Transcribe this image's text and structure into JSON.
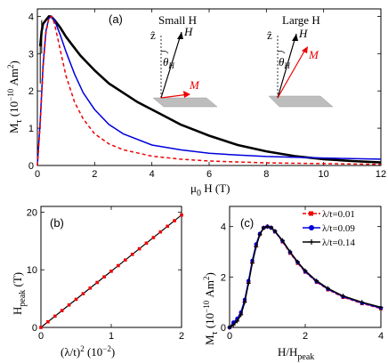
{
  "chart_data": [
    {
      "panel": "(a)",
      "type": "line",
      "xlabel_main": "μ",
      "xlabel_sub": "0",
      "xlabel_rest": " H (T)",
      "ylabel_main": "M",
      "ylabel_sub": "τ",
      "ylabel_rest": " (10",
      "ylabel_exp": "−10",
      "ylabel_unit": " Am",
      "ylabel_unit_exp": "2",
      "ylabel_close": ")",
      "xlim": [
        0,
        12
      ],
      "ylim": [
        0,
        4.2
      ],
      "xticks": [
        0,
        2,
        4,
        6,
        8,
        10,
        12
      ],
      "yticks": [
        0,
        1,
        2,
        3,
        4
      ],
      "series": [
        {
          "style": "black-data",
          "color": "#000000",
          "x": [
            0.1,
            0.15,
            0.2,
            0.25,
            0.3,
            0.35,
            0.4,
            0.45,
            0.5,
            0.6,
            0.7,
            0.8,
            1,
            1.2,
            1.5,
            2,
            2.5,
            3,
            3.5,
            4,
            4.5,
            5,
            5.5,
            6,
            7,
            8,
            9,
            10,
            11,
            12
          ],
          "y": [
            3.2,
            3.6,
            3.8,
            3.85,
            3.9,
            3.95,
            4.0,
            4.0,
            3.98,
            3.9,
            3.8,
            3.7,
            3.45,
            3.25,
            2.95,
            2.55,
            2.2,
            1.95,
            1.7,
            1.5,
            1.3,
            1.1,
            0.95,
            0.8,
            0.55,
            0.38,
            0.25,
            0.17,
            0.12,
            0.08
          ]
        },
        {
          "style": "blue-solid",
          "color": "#0000dd",
          "x": [
            0,
            0.1,
            0.2,
            0.3,
            0.4,
            0.5,
            0.6,
            0.8,
            1,
            1.3,
            1.6,
            2,
            2.5,
            3,
            4,
            5,
            6,
            7,
            8,
            10,
            12
          ],
          "y": [
            0,
            1.2,
            2.7,
            3.6,
            3.95,
            4.0,
            3.9,
            3.5,
            3.05,
            2.45,
            1.95,
            1.5,
            1.1,
            0.85,
            0.55,
            0.42,
            0.33,
            0.28,
            0.24,
            0.2,
            0.17
          ]
        },
        {
          "style": "red-dashed",
          "color": "#ee0000",
          "x": [
            0,
            0.1,
            0.2,
            0.3,
            0.4,
            0.5,
            0.6,
            0.8,
            1,
            1.3,
            1.6,
            2,
            2.5,
            3,
            4,
            5,
            6,
            8,
            10,
            12
          ],
          "y": [
            0,
            1.1,
            2.6,
            3.55,
            3.95,
            4.0,
            3.8,
            3.1,
            2.4,
            1.7,
            1.25,
            0.85,
            0.58,
            0.42,
            0.25,
            0.17,
            0.12,
            0.07,
            0.05,
            0.03
          ]
        }
      ],
      "insets": [
        {
          "title": "Small H",
          "axis": "ẑ",
          "field": "H",
          "angle": "θ",
          "angle_sub": "H",
          "moment": "M"
        },
        {
          "title": "Large H",
          "axis": "ẑ",
          "field": "H",
          "angle": "θ",
          "angle_sub": "H",
          "moment": "M"
        }
      ]
    },
    {
      "panel": "(b)",
      "type": "line",
      "xlabel_main": "(λ/t)",
      "xlabel_exp": "2",
      "xlabel_rest": " (10",
      "xlabel_exp2": "−2",
      "xlabel_close": ")",
      "ylabel_main": "H",
      "ylabel_sub": "peak",
      "ylabel_rest": " (T)",
      "xlim": [
        0,
        2
      ],
      "ylim": [
        0,
        21
      ],
      "xticks": [
        0,
        1,
        2
      ],
      "yticks": [
        0,
        10,
        20
      ],
      "series": [
        {
          "style": "black-line",
          "color": "#000000",
          "x": [
            0,
            2
          ],
          "y": [
            0,
            19.5
          ]
        },
        {
          "style": "red-points",
          "color": "#ee0000",
          "x": [
            0.0,
            0.1,
            0.2,
            0.3,
            0.4,
            0.5,
            0.6,
            0.7,
            0.8,
            0.9,
            1.0,
            1.1,
            1.2,
            1.3,
            1.4,
            1.5,
            1.6,
            1.7,
            1.8,
            1.9,
            2.0
          ],
          "y": [
            0.0,
            0.975,
            1.95,
            2.925,
            3.9,
            4.875,
            5.85,
            6.825,
            7.8,
            8.775,
            9.75,
            10.725,
            11.7,
            12.675,
            13.65,
            14.625,
            15.6,
            16.575,
            17.55,
            18.525,
            19.5
          ]
        }
      ]
    },
    {
      "panel": "(c)",
      "type": "line",
      "xlabel": "H/H",
      "xlabel_sub": "peak",
      "ylabel_main": "M",
      "ylabel_sub": "τ",
      "ylabel_rest": " (10",
      "ylabel_exp": "−10",
      "ylabel_unit": " Am",
      "ylabel_unit_exp": "2",
      "ylabel_close": ")",
      "xlim": [
        0,
        4
      ],
      "ylim": [
        0,
        4.8
      ],
      "xticks": [
        0,
        2,
        4
      ],
      "yticks": [
        0,
        2,
        4
      ],
      "legend_position": "top-right",
      "series": [
        {
          "name": "λ/t=0.01",
          "style": "red-dashed-markers",
          "color": "#ee0000",
          "x": [
            0,
            0.1,
            0.2,
            0.3,
            0.4,
            0.5,
            0.6,
            0.7,
            0.8,
            0.9,
            1.0,
            1.1,
            1.2,
            1.4,
            1.6,
            1.8,
            2.0,
            2.3,
            2.6,
            3.0,
            3.5,
            4.0
          ],
          "y": [
            0,
            0.15,
            0.3,
            0.55,
            1.05,
            1.8,
            2.6,
            3.25,
            3.7,
            3.95,
            4.0,
            3.95,
            3.8,
            3.4,
            2.95,
            2.55,
            2.2,
            1.8,
            1.5,
            1.2,
            0.95,
            0.75
          ]
        },
        {
          "name": "λ/t=0.09",
          "style": "blue-solid-markers",
          "color": "#0000dd",
          "x": [
            0,
            0.1,
            0.2,
            0.3,
            0.4,
            0.5,
            0.6,
            0.7,
            0.8,
            0.9,
            1.0,
            1.1,
            1.2,
            1.4,
            1.6,
            1.8,
            2.0,
            2.3,
            2.6,
            3.0,
            3.5,
            4.0
          ],
          "y": [
            0,
            0.2,
            0.35,
            0.6,
            1.1,
            1.85,
            2.65,
            3.3,
            3.72,
            3.95,
            4.0,
            3.95,
            3.8,
            3.42,
            2.98,
            2.58,
            2.22,
            1.82,
            1.52,
            1.22,
            0.97,
            0.77
          ]
        },
        {
          "name": "λ/t=0.14",
          "style": "black-solid-markers",
          "color": "#000000",
          "x": [
            0,
            0.1,
            0.2,
            0.3,
            0.4,
            0.5,
            0.6,
            0.7,
            0.8,
            0.9,
            1.0,
            1.1,
            1.2,
            1.4,
            1.6,
            1.8,
            2.0,
            2.3,
            2.6,
            3.0,
            3.5,
            4.0
          ],
          "y": [
            0,
            0.1,
            0.25,
            0.5,
            1.0,
            1.75,
            2.55,
            3.2,
            3.68,
            3.95,
            4.0,
            3.96,
            3.82,
            3.45,
            3.0,
            2.6,
            2.25,
            1.85,
            1.55,
            1.25,
            1.0,
            0.8
          ]
        }
      ]
    }
  ]
}
